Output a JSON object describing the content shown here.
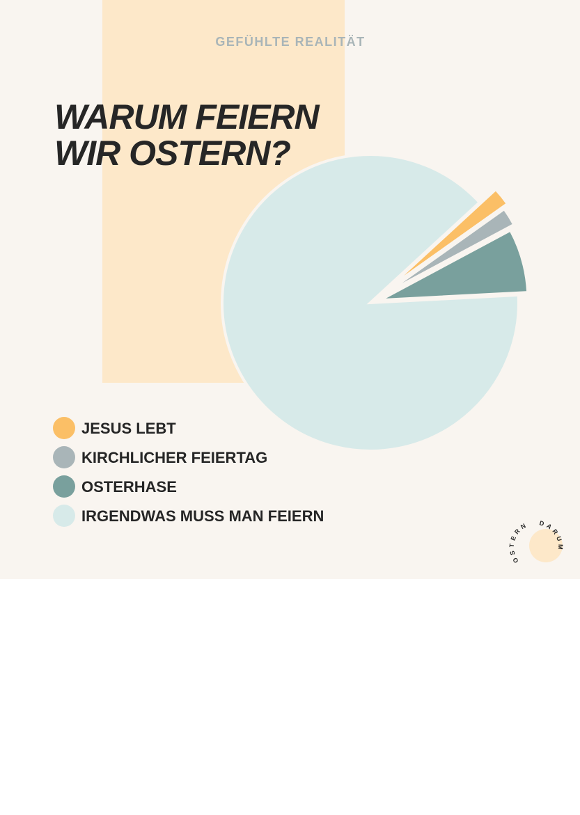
{
  "chart_data": {
    "type": "pie",
    "subtitle": "GEFÜHLTE REALITÄT",
    "title": [
      "WARUM FEIERN",
      "WIR OSTERN?"
    ],
    "categories": [
      "JESUS LEBT",
      "KIRCHLICHER FEIERTAG",
      "OSTERHASE",
      "IRGENDWAS MUSS MAN FEIERN"
    ],
    "values": [
      2,
      2,
      7,
      89
    ],
    "colors": [
      "#fbbf66",
      "#a9b5b8",
      "#79a09d",
      "#d7eae9"
    ],
    "legend": "bottom-left"
  },
  "logo": {
    "top": "OSTERN",
    "bottom": "DARUM"
  }
}
